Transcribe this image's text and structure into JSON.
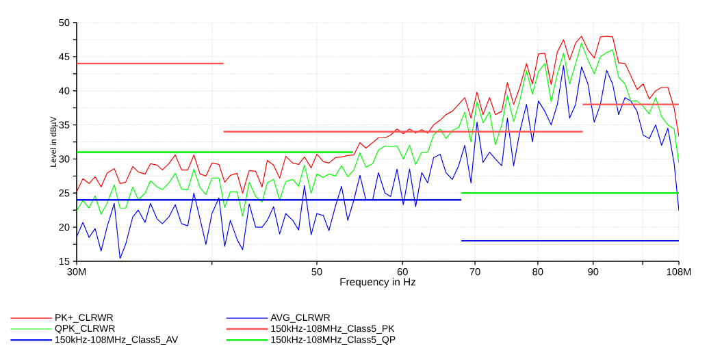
{
  "chart_data": {
    "type": "line",
    "xlabel": "Frequency in Hz",
    "ylabel": "Level in dBµV",
    "log": "x",
    "grid": true,
    "legend": "bottom",
    "xlim": [
      30,
      108
    ],
    "ylim": [
      15,
      50
    ],
    "xticks": [
      {
        "value": 30,
        "label": "30M"
      },
      {
        "value": 40,
        "label": null
      },
      50,
      60,
      70,
      80,
      90,
      {
        "value": 100,
        "label": null
      },
      {
        "value": 108,
        "label": "108M"
      }
    ],
    "yticks": [
      15,
      {
        "value": 17.5,
        "label": null
      },
      20,
      {
        "value": 22.5,
        "label": null
      },
      25,
      {
        "value": 27.5,
        "label": null
      },
      30,
      {
        "value": 32.5,
        "label": null
      },
      35,
      {
        "value": 37.5,
        "label": null
      },
      40,
      {
        "value": 42.5,
        "label": null
      },
      45,
      {
        "value": 47.5,
        "label": null
      },
      50
    ],
    "x": [
      30.0,
      30.4,
      30.8,
      31.2,
      31.6,
      32.0,
      32.5,
      32.9,
      33.3,
      33.8,
      34.2,
      34.7,
      35.1,
      35.6,
      36.0,
      36.5,
      37.0,
      37.5,
      38.0,
      38.5,
      39.0,
      39.5,
      40.0,
      40.6,
      41.1,
      41.6,
      42.2,
      42.7,
      43.3,
      43.9,
      44.5,
      45.0,
      45.6,
      46.2,
      46.8,
      47.5,
      48.1,
      48.7,
      49.4,
      50.0,
      50.7,
      51.3,
      52.0,
      52.7,
      53.4,
      54.1,
      54.8,
      55.5,
      56.3,
      57.0,
      57.8,
      58.5,
      59.3,
      60.1,
      60.9,
      61.7,
      62.5,
      63.3,
      64.1,
      65.0,
      65.8,
      66.7,
      67.6,
      68.5,
      69.4,
      70.3,
      71.2,
      72.2,
      73.1,
      74.1,
      75.0,
      76.0,
      77.0,
      78.1,
      79.1,
      80.1,
      81.2,
      82.3,
      83.4,
      84.5,
      85.6,
      86.7,
      87.8,
      89.0,
      90.2,
      91.4,
      92.6,
      93.8,
      95.0,
      96.3,
      97.5,
      98.8,
      100.1,
      101.4,
      102.8,
      104.1,
      105.5,
      106.9,
      108.0
    ],
    "series": [
      {
        "name": "PK+_CLRWR",
        "color": "#ff0000",
        "values": [
          25.2,
          27.1,
          26.4,
          27.4,
          25.9,
          27.9,
          28.6,
          26.4,
          26.6,
          28.9,
          28.1,
          27.8,
          29.3,
          29.1,
          28.4,
          29.3,
          30.6,
          28.4,
          28.4,
          30.6,
          27.8,
          27.5,
          29.4,
          29.2,
          26.6,
          27.6,
          27.9,
          25.0,
          28.3,
          28.2,
          25.9,
          29.8,
          29.1,
          27.2,
          30.4,
          29.4,
          29.2,
          30.3,
          28.7,
          30.7,
          29.6,
          29.4,
          30.2,
          30.3,
          30.5,
          30.6,
          32.4,
          31.6,
          32.4,
          33.1,
          33.1,
          33.5,
          34.4,
          33.7,
          34.4,
          33.8,
          34.3,
          33.8,
          35.0,
          35.7,
          36.5,
          37.0,
          38.0,
          39.0,
          36.0,
          39.8,
          36.5,
          39.0,
          36.5,
          37.0,
          41.2,
          38.0,
          40.5,
          44.0,
          41.0,
          45.4,
          45.5,
          40.9,
          45.7,
          47.5,
          44.5,
          47.0,
          48.0,
          46.0,
          44.8,
          47.9,
          48.0,
          47.9,
          44.1,
          44.0,
          42.2,
          40.2,
          41.0,
          38.8,
          40.0,
          40.5,
          40.5,
          37.5,
          33.3
        ]
      },
      {
        "name": "AVG_CLRWR",
        "color": "#0000ff",
        "values": [
          18.6,
          20.7,
          18.5,
          19.8,
          16.5,
          20.0,
          23.5,
          15.4,
          17.5,
          21.5,
          22.5,
          20.7,
          23.5,
          21.2,
          20.5,
          21.5,
          23.3,
          20.5,
          20.2,
          25.0,
          21.2,
          17.5,
          22.0,
          24.3,
          17.2,
          21.0,
          18.2,
          16.7,
          23.4,
          20.0,
          20.0,
          21.0,
          23.0,
          19.0,
          22.0,
          21.0,
          19.6,
          26.1,
          18.9,
          22.0,
          21.7,
          19.5,
          23.0,
          26.0,
          21.0,
          24.0,
          27.6,
          24.0,
          24.0,
          28.0,
          25.0,
          24.5,
          28.5,
          23.3,
          28.5,
          23.0,
          28.0,
          26.5,
          30.2,
          30.7,
          28.0,
          27.0,
          29.0,
          32.0,
          26.5,
          35.4,
          29.5,
          31.0,
          30.0,
          29.0,
          36.0,
          29.0,
          34.0,
          38.0,
          32.5,
          38.5,
          37.0,
          35.0,
          38.0,
          43.7,
          36.0,
          38.0,
          43.5,
          41.0,
          35.4,
          38.0,
          43.0,
          41.0,
          36.5,
          39.0,
          38.5,
          37.0,
          33.5,
          33.0,
          35.0,
          32.0,
          34.5,
          29.4,
          22.4
        ]
      },
      {
        "name": "QPK_CLRWR",
        "color": "#00ff00",
        "values": [
          22.4,
          23.9,
          22.8,
          24.6,
          21.9,
          23.5,
          26.2,
          22.8,
          22.8,
          25.9,
          24.0,
          25.0,
          26.8,
          25.9,
          25.5,
          26.5,
          27.9,
          25.6,
          25.5,
          28.5,
          25.8,
          24.8,
          27.2,
          27.2,
          22.9,
          25.2,
          25.2,
          21.6,
          26.6,
          24.5,
          23.7,
          26.5,
          27.0,
          24.0,
          26.7,
          27.0,
          26.0,
          29.1,
          25.0,
          27.8,
          27.3,
          27.8,
          27.5,
          29.0,
          27.4,
          28.4,
          30.9,
          28.8,
          29.3,
          31.3,
          31.9,
          31.8,
          31.9,
          30.0,
          32.0,
          29.2,
          31.0,
          31.0,
          33.5,
          34.4,
          33.0,
          34.2,
          34.6,
          36.9,
          32.5,
          38.4,
          35.3,
          36.9,
          32.1,
          35.0,
          39.3,
          35.5,
          38.5,
          43.0,
          39.5,
          42.8,
          44.0,
          38.4,
          42.5,
          45.5,
          41.0,
          44.0,
          47.0,
          44.5,
          42.5,
          45.0,
          45.6,
          46.0,
          42.0,
          41.0,
          38.5,
          38.5,
          37.7,
          36.6,
          39.0,
          36.2,
          35.0,
          34.4,
          29.4
        ]
      },
      {
        "name": "150kHz-108MHz_Class5_PK",
        "color": "#ff5050",
        "x": [
          30,
          41,
          null,
          41,
          88,
          null,
          88,
          108
        ],
        "values": [
          44,
          44,
          null,
          34,
          34,
          null,
          38,
          38
        ]
      },
      {
        "name": "150kHz-108MHz_Class5_AV",
        "color": "#0a14e6",
        "x": [
          30,
          68,
          null,
          68,
          108
        ],
        "values": [
          24,
          24,
          null,
          18,
          18
        ]
      },
      {
        "name": "150kHz-108MHz_Class5_QP",
        "color": "#00ee00",
        "x": [
          30,
          54,
          null,
          68,
          108
        ],
        "values": [
          31,
          31,
          null,
          25,
          25
        ]
      }
    ]
  }
}
